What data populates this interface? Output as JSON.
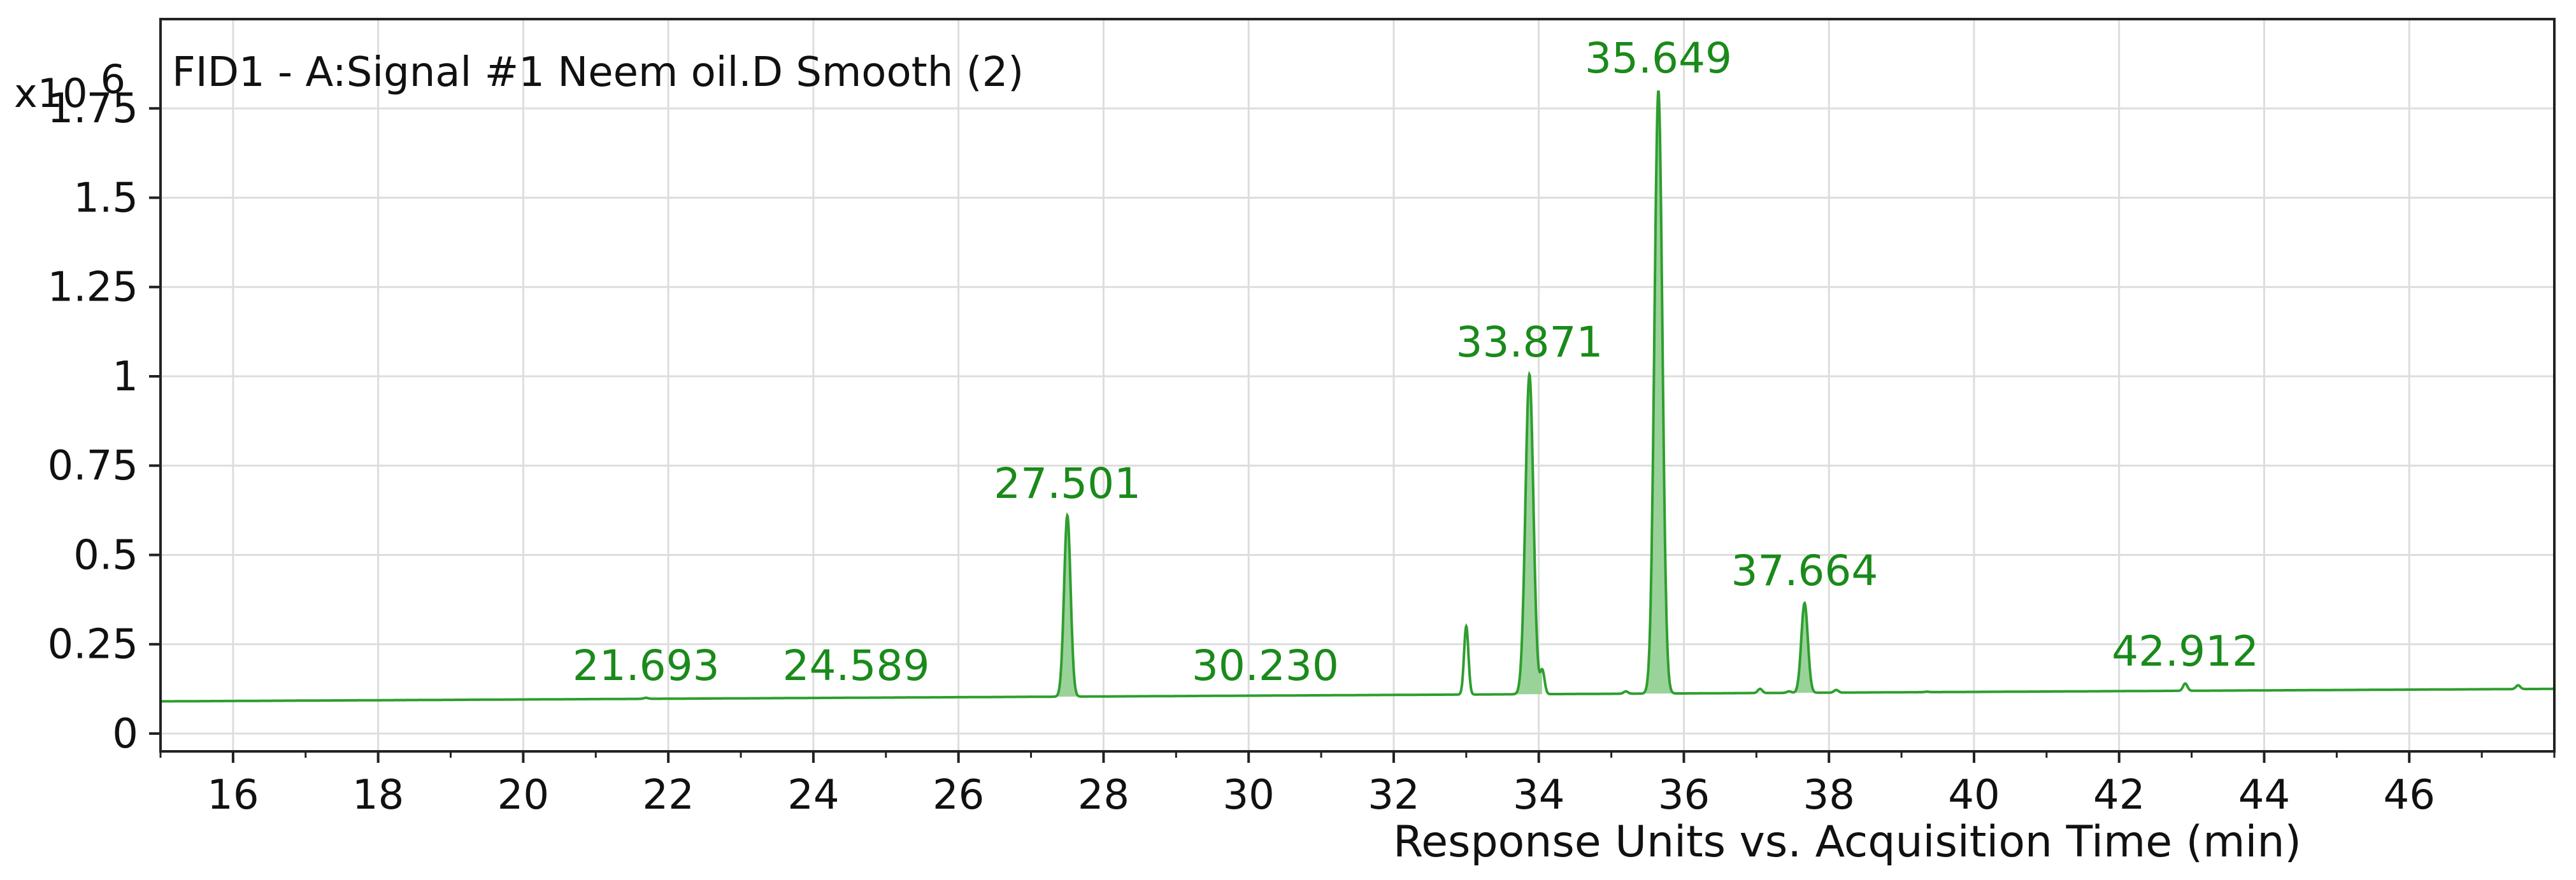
{
  "chart_data": {
    "type": "line",
    "title": "FID1 - A:Signal #1 Neem oil.D  Smooth (2)",
    "xlabel": "Response Units vs. Acquisition Time (min)",
    "ylabel": "",
    "y_scale_label": "x10",
    "y_scale_exponent": "6",
    "xlim": [
      15,
      48
    ],
    "ylim": [
      -0.05,
      2.0
    ],
    "x_ticks": [
      16,
      18,
      20,
      22,
      24,
      26,
      28,
      30,
      32,
      34,
      36,
      38,
      40,
      42,
      44,
      46
    ],
    "x_tick_labels": [
      "16",
      "18",
      "20",
      "22",
      "24",
      "26",
      "28",
      "30",
      "32",
      "34",
      "36",
      "38",
      "40",
      "42",
      "44",
      "46"
    ],
    "y_ticks": [
      0,
      0.25,
      0.5,
      0.75,
      1,
      1.25,
      1.5,
      1.75
    ],
    "y_tick_labels": [
      "0",
      "0.25",
      "0.5",
      "0.75",
      "1",
      "1.25",
      "1.5",
      "1.75"
    ],
    "grid": true,
    "line_color": "#2e9e2e",
    "fill_color": "#9ad39a",
    "label_color": "#1a8a1a",
    "baseline": {
      "start": 0.09,
      "end": 0.125
    },
    "peaks": [
      {
        "rt": 21.693,
        "height": 0.1,
        "label": "21.693"
      },
      {
        "rt": 24.589,
        "height": 0.1,
        "label": "24.589"
      },
      {
        "rt": 27.501,
        "height": 0.61,
        "label": "27.501"
      },
      {
        "rt": 30.23,
        "height": 0.1,
        "label": "30.230"
      },
      {
        "rt": 33.871,
        "height": 1.005,
        "label": "33.871"
      },
      {
        "rt": 35.649,
        "height": 1.8,
        "label": "35.649"
      },
      {
        "rt": 37.664,
        "height": 0.365,
        "label": "37.664"
      },
      {
        "rt": 42.912,
        "height": 0.14,
        "label": "42.912"
      }
    ],
    "minor_peaks": [
      {
        "rt": 28.7,
        "height": 0.098
      },
      {
        "rt": 33.0,
        "height": 0.3
      },
      {
        "rt": 34.05,
        "height": 0.175
      },
      {
        "rt": 34.8,
        "height": 0.102
      },
      {
        "rt": 35.2,
        "height": 0.118
      },
      {
        "rt": 37.05,
        "height": 0.125
      },
      {
        "rt": 37.45,
        "height": 0.118
      },
      {
        "rt": 38.1,
        "height": 0.122
      },
      {
        "rt": 38.85,
        "height": 0.115
      },
      {
        "rt": 39.35,
        "height": 0.117
      },
      {
        "rt": 40.5,
        "height": 0.116
      },
      {
        "rt": 47.5,
        "height": 0.135
      }
    ]
  }
}
